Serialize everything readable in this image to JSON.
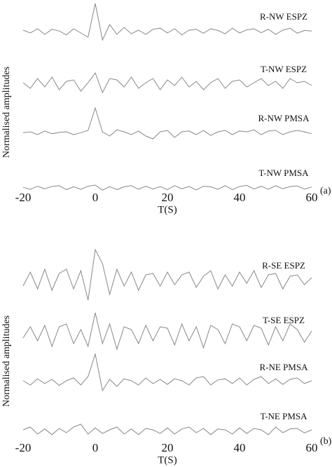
{
  "chart_data": [
    {
      "type": "line",
      "x_label": "T(S)",
      "y_label": "Normalised amplitudes",
      "panel_label": "(a)",
      "xlim": [
        -20,
        60
      ],
      "xticks": [
        -20,
        0,
        20,
        40,
        60
      ],
      "ylim": [
        -1.2,
        1.2
      ],
      "color": "#888888",
      "x": [
        -20,
        -18,
        -16,
        -14,
        -12,
        -10,
        -8,
        -6,
        -4,
        -2,
        0,
        2,
        4,
        6,
        8,
        10,
        12,
        14,
        16,
        18,
        20,
        22,
        24,
        26,
        28,
        30,
        32,
        34,
        36,
        38,
        40,
        42,
        44,
        46,
        48,
        50,
        52,
        54,
        56,
        58,
        60
      ],
      "series": [
        {
          "name": "R-NW ESPZ",
          "values": [
            0.05,
            -0.05,
            0.1,
            -0.1,
            0.08,
            0.02,
            -0.12,
            0.1,
            -0.05,
            -0.2,
            1.0,
            -0.3,
            0.25,
            -0.1,
            0.15,
            -0.08,
            0.05,
            -0.1,
            0.08,
            0.12,
            -0.05,
            0.1,
            -0.12,
            0.05,
            0.08,
            -0.06,
            0.1,
            0.04,
            -0.08,
            0.12,
            -0.05,
            0.06,
            0.1,
            -0.04,
            0.08,
            -0.1,
            0.05,
            0.12,
            -0.06,
            0.04,
            0.02
          ]
        },
        {
          "name": "T-NW ESPZ",
          "values": [
            0.05,
            -0.15,
            0.2,
            -0.1,
            0.25,
            -0.2,
            0.1,
            0.15,
            -0.25,
            0.05,
            0.4,
            -0.3,
            0.2,
            0.15,
            -0.1,
            0.25,
            -0.15,
            0.05,
            0.2,
            -0.2,
            0.15,
            -0.05,
            0.25,
            -0.1,
            0.1,
            -0.2,
            0.05,
            0.2,
            -0.15,
            0.1,
            0.15,
            -0.1,
            0.05,
            0.2,
            -0.05,
            0.1,
            -0.15,
            0.2,
            0.05,
            0.1,
            -0.05
          ]
        },
        {
          "name": "R-NW PMSA",
          "values": [
            0.02,
            0.05,
            -0.05,
            0.08,
            -0.02,
            0.03,
            0.05,
            -0.05,
            0.02,
            0.1,
            0.9,
            0.05,
            -0.1,
            0.12,
            0.05,
            -0.05,
            0.08,
            -0.1,
            -0.2,
            0.05,
            0.1,
            -0.15,
            0.05,
            0.08,
            -0.05,
            0.1,
            -0.08,
            0.05,
            0.1,
            -0.05,
            0.08,
            0.05,
            0.12,
            -0.05,
            0.08,
            0.1,
            -0.05,
            0.05,
            0.1,
            0.05,
            -0.02
          ]
        },
        {
          "name": "T-NW PMSA",
          "values": [
            0.02,
            -0.05,
            0.06,
            -0.03,
            0.05,
            0.08,
            -0.06,
            0.04,
            -0.05,
            0.06,
            0.1,
            -0.08,
            0.05,
            -0.06,
            0.04,
            0.08,
            -0.05,
            0.06,
            -0.04,
            0.05,
            -0.06,
            0.08,
            -0.03,
            0.05,
            -0.07,
            0.06,
            0.04,
            -0.05,
            0.08,
            -0.06,
            0.05,
            0.09,
            -0.04,
            0.06,
            -0.05,
            0.08,
            -0.03,
            0.05,
            0.07,
            -0.04,
            0.03
          ]
        }
      ]
    },
    {
      "type": "line",
      "x_label": "T(S)",
      "y_label": "Normalised amplitudes",
      "panel_label": "(b)",
      "xlim": [
        -20,
        60
      ],
      "xticks": [
        -20,
        0,
        20,
        40,
        60
      ],
      "ylim": [
        -1.2,
        1.2
      ],
      "color": "#888888",
      "x": [
        -20,
        -18,
        -16,
        -14,
        -12,
        -10,
        -8,
        -6,
        -4,
        -2,
        0,
        2,
        4,
        6,
        8,
        10,
        12,
        14,
        16,
        18,
        20,
        22,
        24,
        26,
        28,
        30,
        32,
        34,
        36,
        38,
        40,
        42,
        44,
        46,
        48,
        50,
        52,
        54,
        56,
        58,
        60
      ],
      "series": [
        {
          "name": "R-SE ESPZ",
          "values": [
            -0.2,
            0.3,
            -0.3,
            0.4,
            -0.35,
            0.25,
            0.4,
            -0.3,
            0.35,
            -0.7,
            1.1,
            0.6,
            -0.5,
            0.4,
            -0.2,
            0.3,
            -0.35,
            0.2,
            0.25,
            -0.2,
            0.3,
            -0.15,
            0.2,
            0.3,
            -0.25,
            0.15,
            0.35,
            -0.3,
            0.2,
            -0.2,
            0.3,
            -0.1,
            0.35,
            -0.25,
            0.2,
            0.25,
            -0.3,
            0.15,
            0.2,
            -0.15,
            0.1
          ]
        },
        {
          "name": "T-SE ESPZ",
          "values": [
            -0.1,
            0.3,
            -0.2,
            0.35,
            -0.4,
            0.3,
            0.4,
            -0.3,
            0.2,
            -0.4,
            0.8,
            -0.3,
            0.4,
            -0.5,
            0.3,
            0.2,
            -0.3,
            0.35,
            -0.2,
            0.3,
            0.25,
            -0.35,
            0.4,
            -0.2,
            0.3,
            -0.45,
            0.35,
            0.2,
            -0.3,
            0.4,
            0.3,
            -0.2,
            0.35,
            0.25,
            -0.35,
            0.3,
            -0.2,
            0.4,
            0.2,
            -0.25,
            0.15
          ]
        },
        {
          "name": "R-NE PMSA",
          "values": [
            0.05,
            -0.1,
            0.12,
            -0.05,
            0.1,
            -0.12,
            0.05,
            0.15,
            -0.1,
            0.2,
            1.0,
            -0.3,
            0.1,
            -0.15,
            0.12,
            0.05,
            -0.1,
            0.15,
            -0.05,
            0.1,
            -0.08,
            0.12,
            0.05,
            -0.1,
            0.15,
            0.2,
            -0.1,
            0.08,
            0.12,
            -0.05,
            0.15,
            -0.1,
            0.1,
            0.2,
            -0.05,
            0.12,
            -0.08,
            0.1,
            0.15,
            -0.05,
            0.05
          ]
        },
        {
          "name": "T-NE PMSA",
          "values": [
            0.05,
            0.15,
            -0.1,
            0.08,
            -0.12,
            0.1,
            -0.05,
            0.15,
            0.25,
            -0.1,
            0.12,
            -0.08,
            0.05,
            0.15,
            -0.1,
            0.08,
            -0.12,
            0.1,
            0.05,
            -0.08,
            0.12,
            -0.1,
            0.08,
            0.15,
            -0.05,
            0.1,
            -0.12,
            0.08,
            0.05,
            -0.1,
            0.12,
            -0.08,
            0.1,
            0.05,
            -0.12,
            0.15,
            -0.05,
            0.08,
            0.1,
            -0.06,
            0.05
          ]
        }
      ]
    }
  ]
}
